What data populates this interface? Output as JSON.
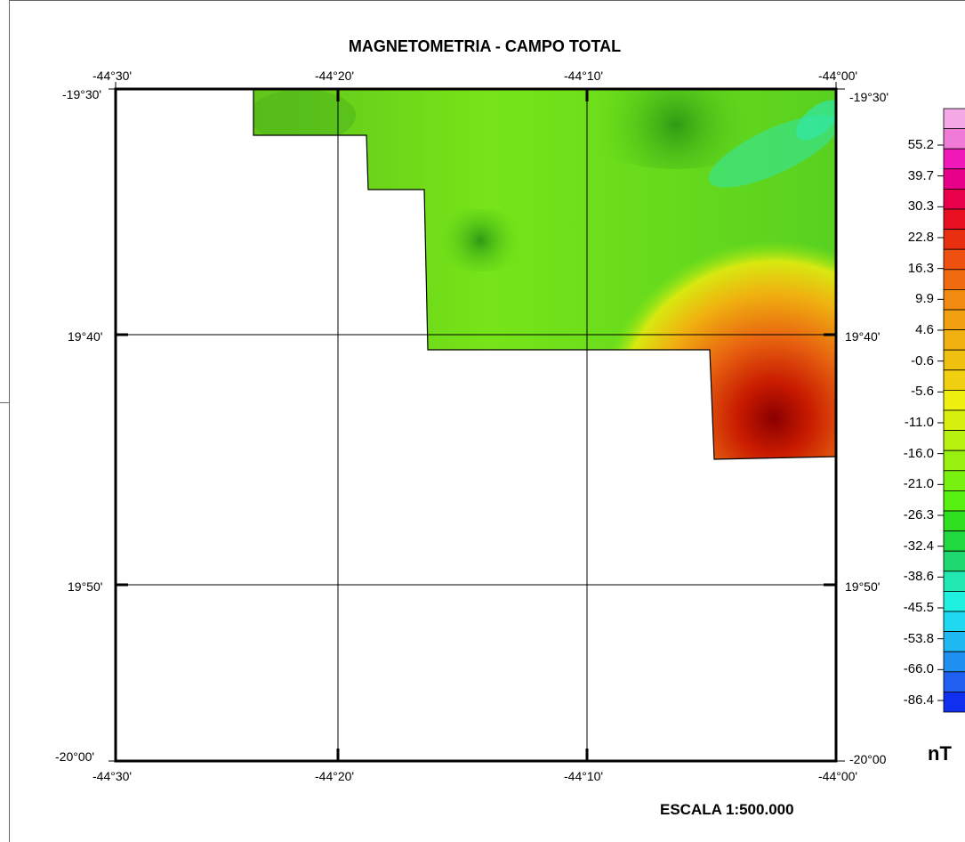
{
  "title": "MAGNETOMETRIA - CAMPO TOTAL",
  "scale": "ESCALA 1:500.000",
  "unit": "nT",
  "top_lon_labels": [
    "-44°30'",
    "-44°20'",
    "-44°10'",
    "-44°00'"
  ],
  "bottom_lon_labels": [
    "-44°30'",
    "-44°20'",
    "-44°10'",
    "-44°00'"
  ],
  "left_lat_labels": [
    "-19°30'",
    "19°40'",
    "19°50'",
    "-20°00'"
  ],
  "right_lat_labels": [
    "-19°30'",
    "19°40'",
    "19°50'",
    "-20°00"
  ],
  "legend_labels": [
    "55.2",
    "39.7",
    "30.3",
    "22.8",
    "16.3",
    "9.9",
    "4.6",
    "-0.6",
    "-5.6",
    "-11.0",
    "-16.0",
    "-21.0",
    "-26.3",
    "-32.4",
    "-38.6",
    "-45.5",
    "-53.8",
    "-66.0",
    "-86.4"
  ],
  "legend_colors": [
    "#f5a8e6",
    "#f07ad8",
    "#f018b8",
    "#e8008a",
    "#e8004a",
    "#e81020",
    "#e83010",
    "#ee5010",
    "#f06a10",
    "#f08a10",
    "#f0a010",
    "#f0b010",
    "#f0c010",
    "#f0d010",
    "#f0f010",
    "#d8f010",
    "#b8f010",
    "#98f010",
    "#78f010",
    "#58f010",
    "#30e020",
    "#20d840",
    "#20d870",
    "#20e8b0",
    "#20f0e0",
    "#20d8f0",
    "#20b8f0",
    "#2090f0",
    "#2060f0",
    "#1030f0"
  ],
  "colors": {
    "frame": "#000000",
    "green_base": "#5cd41a",
    "green_dark": "#3aa816",
    "green_light": "#7ae818",
    "cyan": "#30e8a8",
    "red": "#a80000"
  }
}
